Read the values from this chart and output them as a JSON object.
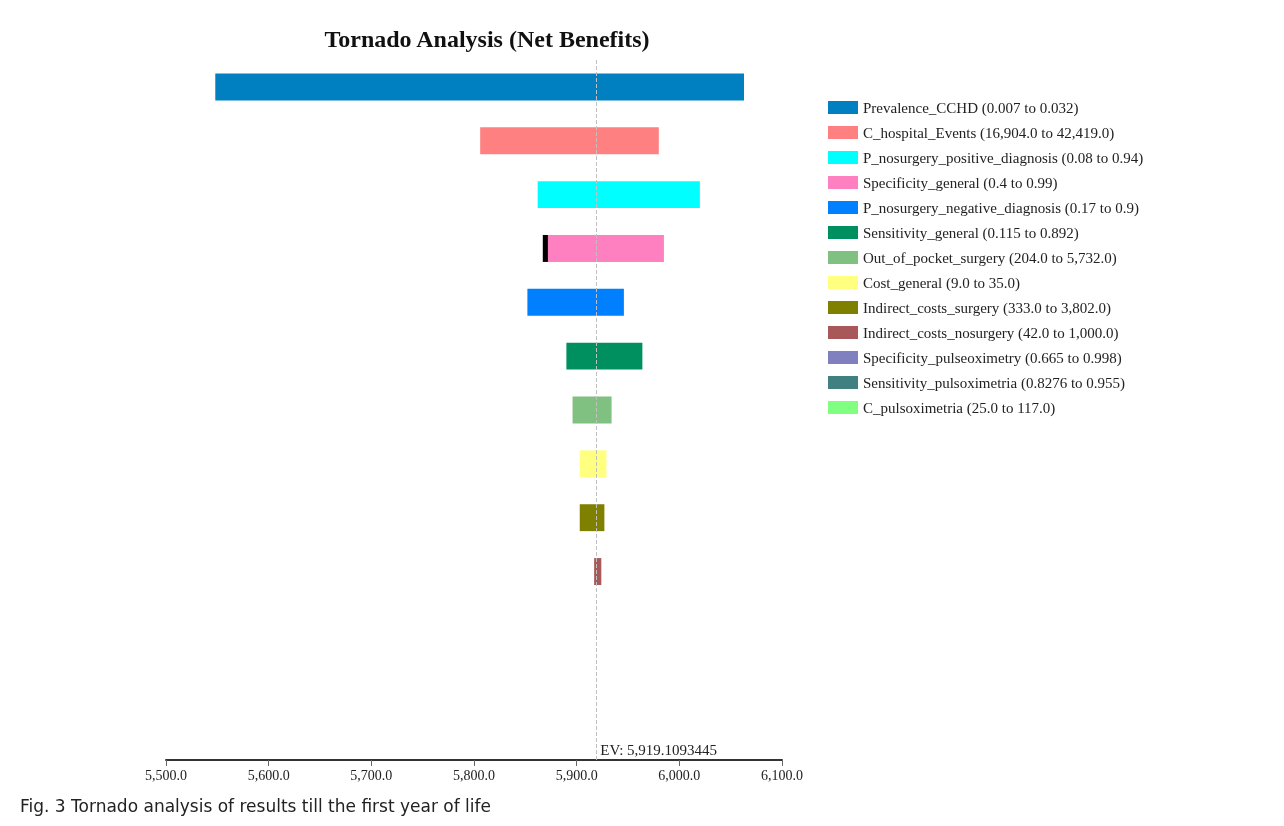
{
  "chart_data": {
    "type": "bar",
    "orientation": "horizontal",
    "title": "Tornado Analysis (Net Benefits)",
    "categories": [
      null,
      null,
      null,
      null,
      null,
      null,
      null,
      null,
      null,
      null,
      null,
      null,
      null
    ],
    "series": [
      {
        "name": "Prevalence_CCHD (0.007 to 0.032)",
        "color": "#0080c0",
        "values": [
          515,
          null,
          null,
          null,
          null,
          null,
          null,
          null,
          null,
          null,
          null,
          null,
          null
        ],
        "base": [
          5548,
          null,
          null,
          null,
          null,
          null,
          null,
          null,
          null,
          null,
          null,
          null,
          null
        ]
      },
      {
        "name": "C_hospital_Events (16,904.0 to 42,419.0)",
        "color": "#ff8080",
        "values": [
          null,
          174,
          null,
          null,
          null,
          null,
          null,
          null,
          null,
          null,
          null,
          null,
          null
        ],
        "base": [
          null,
          5806,
          null,
          null,
          null,
          null,
          null,
          null,
          null,
          null,
          null,
          null,
          null
        ]
      },
      {
        "name": "P_nosurgery_positive_diagnosis (0.08 to 0.94)",
        "color": "#00ffff",
        "values": [
          null,
          null,
          158,
          null,
          null,
          null,
          null,
          null,
          null,
          null,
          null,
          null,
          null
        ],
        "base": [
          null,
          null,
          5862,
          null,
          null,
          null,
          null,
          null,
          null,
          null,
          null,
          null,
          null
        ]
      },
      {
        "name": "Specificity_general (0.4 to 0.99)",
        "color": "#ff80c0",
        "values": [
          null,
          null,
          null,
          113,
          null,
          null,
          null,
          null,
          null,
          null,
          null,
          null,
          null
        ],
        "base": [
          null,
          null,
          null,
          5872,
          null,
          null,
          null,
          null,
          null,
          null,
          null,
          null,
          null
        ]
      },
      {
        "color": "#000000",
        "values": [
          null,
          null,
          null,
          5,
          null,
          null,
          null,
          null,
          null,
          null,
          null,
          null,
          null
        ],
        "base": [
          null,
          null,
          null,
          5867,
          null,
          null,
          null,
          null,
          null,
          null,
          null,
          null,
          null
        ]
      },
      {
        "name": "P_nosurgery_negative_diagnosis (0.17 to 0.9)",
        "color": "#0080ff",
        "values": [
          null,
          null,
          null,
          null,
          94,
          null,
          null,
          null,
          null,
          null,
          null,
          null,
          null
        ],
        "base": [
          null,
          null,
          null,
          null,
          5852,
          null,
          null,
          null,
          null,
          null,
          null,
          null,
          null
        ]
      },
      {
        "name": "Sensitivity_general (0.115 to 0.892)",
        "color": "#008f5f",
        "values": [
          null,
          null,
          null,
          null,
          null,
          74,
          null,
          null,
          null,
          null,
          null,
          null,
          null
        ],
        "base": [
          null,
          null,
          null,
          null,
          null,
          5890,
          null,
          null,
          null,
          null,
          null,
          null,
          null
        ]
      },
      {
        "name": "Out_of_pocket_surgery (204.0 to 5,732.0)",
        "color": "#80c080",
        "values": [
          null,
          null,
          null,
          null,
          null,
          null,
          38,
          null,
          null,
          null,
          null,
          null,
          null
        ],
        "base": [
          null,
          null,
          null,
          null,
          null,
          null,
          5896,
          null,
          null,
          null,
          null,
          null,
          null
        ]
      },
      {
        "name": "Cost_general (9.0 to 35.0)",
        "color": "#ffff80",
        "values": [
          null,
          null,
          null,
          null,
          null,
          null,
          null,
          26,
          null,
          null,
          null,
          null,
          null
        ],
        "base": [
          null,
          null,
          null,
          null,
          null,
          null,
          null,
          5903,
          null,
          null,
          null,
          null,
          null
        ]
      },
      {
        "name": "Indirect_costs_surgery (333.0 to 3,802.0)",
        "color": "#808000",
        "values": [
          null,
          null,
          null,
          null,
          null,
          null,
          null,
          null,
          24,
          null,
          null,
          null,
          null
        ],
        "base": [
          null,
          null,
          null,
          null,
          null,
          null,
          null,
          null,
          5903,
          null,
          null,
          null,
          null
        ]
      },
      {
        "name": "Indirect_costs_nosurgery (42.0 to 1,000.0)",
        "color": "#a85858",
        "values": [
          null,
          null,
          null,
          null,
          null,
          null,
          null,
          null,
          null,
          7,
          null,
          null,
          null
        ],
        "base": [
          null,
          null,
          null,
          null,
          null,
          null,
          null,
          null,
          null,
          5917,
          null,
          null,
          null
        ]
      },
      {
        "name": "Specificity_pulseoximetry (0.665 to 0.998)",
        "color": "#8080c0",
        "values": [
          null,
          null,
          null,
          null,
          null,
          null,
          null,
          null,
          null,
          null,
          null,
          null,
          null
        ]
      },
      {
        "name": "Sensitivity_pulsoximetria (0.8276 to 0.955)",
        "color": "#408080",
        "values": [
          null,
          null,
          null,
          null,
          null,
          null,
          null,
          null,
          null,
          null,
          null,
          null,
          null
        ]
      },
      {
        "name": "C_pulsoximetria (25.0 to 117.0)",
        "color": "#80ff80",
        "values": [
          null,
          null,
          null,
          null,
          null,
          null,
          null,
          null,
          null,
          null,
          null,
          null,
          null
        ]
      }
    ],
    "xlim": [
      5500,
      6100
    ],
    "xticks": [
      {
        "value": 5500,
        "label": "5,500.0"
      },
      {
        "value": 5600,
        "label": "5,600.0"
      },
      {
        "value": 5700,
        "label": "5,700.0"
      },
      {
        "value": 5800,
        "label": "5,800.0"
      },
      {
        "value": 5900,
        "label": "5,900.0"
      },
      {
        "value": 6000,
        "label": "6,000.0"
      },
      {
        "value": 6100,
        "label": "6,100.0"
      }
    ],
    "ref_lines": [
      {
        "axis": "x",
        "value": 5919.1093445,
        "label": "EV: 5,919.1093445",
        "color": "#c0c0c0",
        "line_style": "dashed"
      }
    ],
    "tick_labels": "x",
    "grid": false,
    "legend": "right",
    "annotations": [
      "Fig. 3 Tornado analysis of results till the first year of life"
    ]
  }
}
